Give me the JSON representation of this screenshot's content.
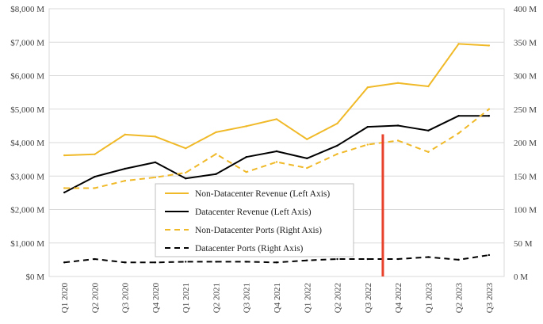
{
  "chart_data": {
    "type": "line",
    "title": "",
    "xlabel": "",
    "ylabel_left": "",
    "ylabel_right": "",
    "categories": [
      "Q1 2020",
      "Q2 2020",
      "Q3 2020",
      "Q4 2020",
      "Q1 2021",
      "Q2 2021",
      "Q3 2021",
      "Q4 2021",
      "Q1 2022",
      "Q2 2022",
      "Q3 2022",
      "Q4 2022",
      "Q1 2023",
      "Q2 2023",
      "Q3 2023"
    ],
    "left_axis": {
      "ylim": [
        0,
        8000
      ],
      "tick_values": [
        0,
        1000,
        2000,
        3000,
        4000,
        5000,
        6000,
        7000,
        8000
      ],
      "tick_labels": [
        "$0 M",
        "$1,000 M",
        "$2,000 M",
        "$3,000 M",
        "$4,000 M",
        "$5,000 M",
        "$6,000 M",
        "$7,000 M",
        "$8,000 M"
      ]
    },
    "right_axis": {
      "ylim": [
        0,
        400
      ],
      "tick_values": [
        0,
        50,
        100,
        150,
        200,
        250,
        300,
        350,
        400
      ],
      "tick_labels": [
        "0 M",
        "50 M",
        "100 M",
        "150 M",
        "200 M",
        "250 M",
        "300 M",
        "350 M",
        "400 M"
      ]
    },
    "grid": true,
    "legend_position": "center-left",
    "marker": {
      "type": "vertical-line",
      "between": [
        "Q3 2022",
        "Q4 2022"
      ],
      "from": 0,
      "to": 4250,
      "axis": "left",
      "color": "#e8412c"
    },
    "series": [
      {
        "name": "Non-Datacenter Revenue (Left Axis)",
        "axis": "left",
        "style": "solid",
        "color": "#f0b928",
        "values": [
          3620,
          3650,
          4240,
          4180,
          3830,
          4310,
          4490,
          4700,
          4100,
          4570,
          5650,
          5780,
          5680,
          6950,
          6900
        ]
      },
      {
        "name": "Datacenter Revenue (Left Axis)",
        "axis": "left",
        "style": "solid",
        "color": "#000000",
        "values": [
          2510,
          2980,
          3220,
          3410,
          2930,
          3060,
          3570,
          3740,
          3530,
          3910,
          4470,
          4510,
          4360,
          4800,
          4800
        ]
      },
      {
        "name": "Non-Datacenter Ports (Right Axis)",
        "axis": "right",
        "style": "dashed",
        "color": "#f0b928",
        "values": [
          132,
          132,
          143,
          148,
          155,
          183,
          156,
          171,
          162,
          183,
          197,
          203,
          186,
          214,
          250
        ]
      },
      {
        "name": "Datacenter Ports (Right Axis)",
        "axis": "right",
        "style": "dashed",
        "color": "#000000",
        "values": [
          21,
          26,
          21,
          21,
          22,
          22,
          22,
          21,
          24,
          26,
          26,
          26,
          29,
          25,
          32
        ]
      }
    ]
  }
}
